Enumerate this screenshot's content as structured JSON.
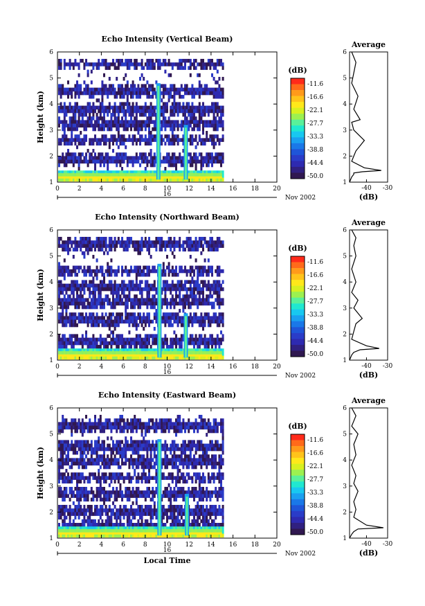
{
  "colorbar": {
    "unit": "(dB)",
    "labels": [
      "-11.6",
      "-16.6",
      "-22.1",
      "-27.7",
      "-33.3",
      "-38.8",
      "-44.4",
      "-50.0"
    ],
    "colors": [
      "#ff2a1a",
      "#ff6a1a",
      "#ff9a1a",
      "#ffc31a",
      "#ffe81a",
      "#d8f020",
      "#9cf050",
      "#5af09a",
      "#20e8d0",
      "#18c8f0",
      "#1aa0f0",
      "#1a78e8",
      "#1f55d8",
      "#2a3cc8",
      "#2e2ab0",
      "#302080",
      "#301850"
    ]
  },
  "time_axis": {
    "ticks": [
      "0",
      "2",
      "4",
      "6",
      "8",
      "10",
      "12",
      "14",
      "16",
      "18",
      "20"
    ],
    "day_label": "16",
    "date_label": "Nov 2002",
    "title": "Local Time"
  },
  "height_axis": {
    "title": "Height (km)",
    "ticks": [
      "1",
      "2",
      "3",
      "4",
      "5",
      "6"
    ]
  },
  "average_axis": {
    "title": "Average",
    "ticks": [
      "-40",
      "-30"
    ],
    "unit": "(dB)"
  },
  "chart_data": [
    {
      "type": "heatmap",
      "title": "Echo Intensity (Vertical Beam)",
      "xlabel": "",
      "ylabel": "Height (km)",
      "xlim": [
        0,
        20
      ],
      "ylim": [
        1,
        6
      ],
      "data_end_hour": 15,
      "echo_layers_km": [
        1.3,
        1.9,
        2.7,
        3.3,
        3.9,
        4.6,
        5.6
      ],
      "spikes": [
        {
          "hour": 9.2,
          "top_km": 4.8
        },
        {
          "hour": 11.7,
          "top_km": 3.2
        }
      ],
      "profile": {
        "x_db": [
          -48,
          -47,
          -46,
          -46,
          -42,
          -33,
          -41,
          -47,
          -46,
          -45,
          -41,
          -46,
          -47,
          -43,
          -46,
          -44,
          -47,
          -45,
          -47
        ],
        "height_km": [
          1.0,
          1.2,
          1.3,
          1.35,
          1.4,
          1.45,
          1.55,
          1.8,
          2.0,
          2.2,
          2.6,
          3.0,
          3.3,
          3.4,
          3.8,
          4.3,
          4.8,
          5.6,
          6.0
        ]
      }
    },
    {
      "type": "heatmap",
      "title": "Echo Intensity (Northward Beam)",
      "xlabel": "",
      "ylabel": "Height (km)",
      "xlim": [
        0,
        20
      ],
      "ylim": [
        1,
        6
      ],
      "data_end_hour": 15,
      "echo_layers_km": [
        1.3,
        1.8,
        2.6,
        3.3,
        3.9,
        4.5,
        5.5
      ],
      "spikes": [
        {
          "hour": 9.3,
          "top_km": 4.7
        },
        {
          "hour": 11.7,
          "top_km": 2.8
        }
      ],
      "profile": {
        "x_db": [
          -48,
          -47,
          -46,
          -43,
          -34,
          -40,
          -47,
          -46,
          -45,
          -42,
          -46,
          -44,
          -47,
          -45,
          -47,
          -45,
          -46,
          -45,
          -47
        ],
        "height_km": [
          1.0,
          1.2,
          1.3,
          1.4,
          1.45,
          1.55,
          1.8,
          2.1,
          2.4,
          2.6,
          3.0,
          3.3,
          3.6,
          4.0,
          4.5,
          5.0,
          5.4,
          5.7,
          6.0
        ]
      }
    },
    {
      "type": "heatmap",
      "title": "Echo Intensity (Eastward Beam)",
      "xlabel": "Local Time",
      "ylabel": "Height (km)",
      "xlim": [
        0,
        20
      ],
      "ylim": [
        1,
        6
      ],
      "data_end_hour": 15,
      "echo_layers_km": [
        1.3,
        1.6,
        2.1,
        2.8,
        3.4,
        4.0,
        4.6,
        5.4
      ],
      "spikes": [
        {
          "hour": 9.3,
          "top_km": 4.8
        },
        {
          "hour": 11.8,
          "top_km": 2.7
        }
      ],
      "profile": {
        "x_db": [
          -48,
          -47,
          -46,
          -44,
          -32,
          -40,
          -46,
          -45,
          -46,
          -44,
          -46,
          -45,
          -47,
          -45,
          -46,
          -44,
          -47,
          -45,
          -47
        ],
        "height_km": [
          1.0,
          1.15,
          1.25,
          1.35,
          1.4,
          1.5,
          1.8,
          2.1,
          2.4,
          2.8,
          3.1,
          3.4,
          3.8,
          4.2,
          4.6,
          5.0,
          5.3,
          5.7,
          6.0
        ]
      }
    }
  ]
}
